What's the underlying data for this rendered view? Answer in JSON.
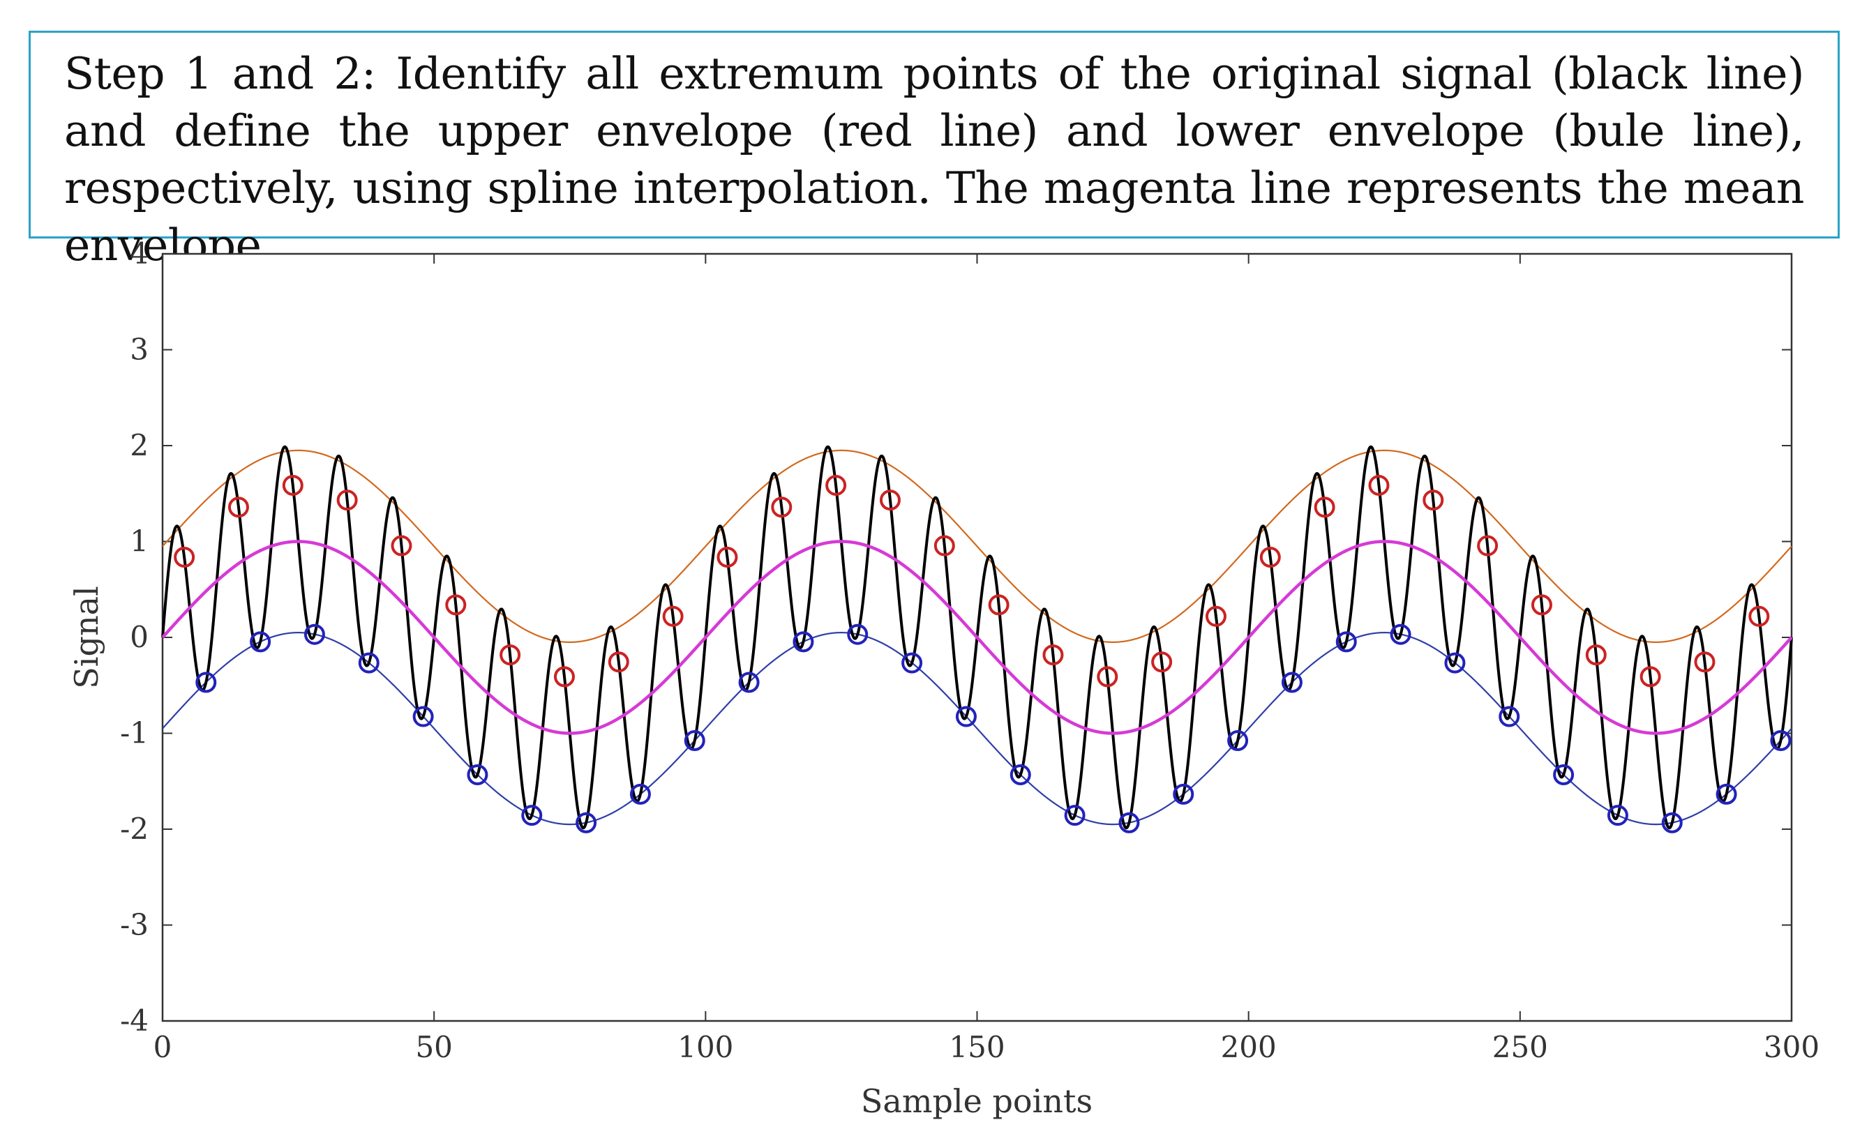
{
  "caption": {
    "text": "Step 1 and 2: Identify all extremum points of the original signal (black line) and define the upper envelope (red line) and lower envelope (bule line), respectively, using spline interpolation. The magenta line represents the mean envelope."
  },
  "chart_data": {
    "type": "line",
    "title": "",
    "xlabel": "Sample points",
    "ylabel": "Signal",
    "xlim": [
      0,
      300
    ],
    "ylim": [
      -4,
      4
    ],
    "xticks": [
      0,
      50,
      100,
      150,
      200,
      250,
      300
    ],
    "yticks": [
      -4,
      -3,
      -2,
      -1,
      0,
      1,
      2,
      3,
      4
    ],
    "xtick_labels": [
      "0",
      "50",
      "100",
      "150",
      "200",
      "250",
      "300"
    ],
    "ytick_labels": [
      "-4",
      "-3",
      "-2",
      "-1",
      "0",
      "1",
      "2",
      "3",
      "4"
    ],
    "grid": false,
    "signal_model": "y = sin(2*pi*x/100) + sin(2*pi*x/10)",
    "series": [
      {
        "name": "Original signal",
        "color": "#000000",
        "role": "signal"
      },
      {
        "name": "Upper envelope",
        "color": "#d2691e",
        "role": "upper",
        "formula": "sin(2*pi*x/100) + 0.95"
      },
      {
        "name": "Lower envelope",
        "color": "#2f3fa8",
        "role": "lower",
        "formula": "sin(2*pi*x/100) - 0.95"
      },
      {
        "name": "Mean envelope",
        "color": "#d63ad6",
        "role": "mean",
        "formula": "sin(2*pi*x/100)"
      }
    ],
    "maxima_x": [
      4,
      14,
      24,
      34,
      44,
      54,
      64,
      74,
      84,
      94,
      104,
      114,
      124,
      134,
      144,
      154,
      164,
      174,
      184,
      194,
      204,
      214,
      224,
      234,
      244,
      254,
      264,
      274,
      284,
      294
    ],
    "minima_x": [
      8,
      18,
      28,
      38,
      48,
      58,
      68,
      78,
      88,
      98,
      108,
      118,
      128,
      138,
      148,
      158,
      168,
      178,
      188,
      198,
      208,
      218,
      228,
      238,
      248,
      258,
      268,
      278,
      288,
      298
    ],
    "maxima_marker_color": "#cc2222",
    "minima_marker_color": "#2222bb"
  }
}
